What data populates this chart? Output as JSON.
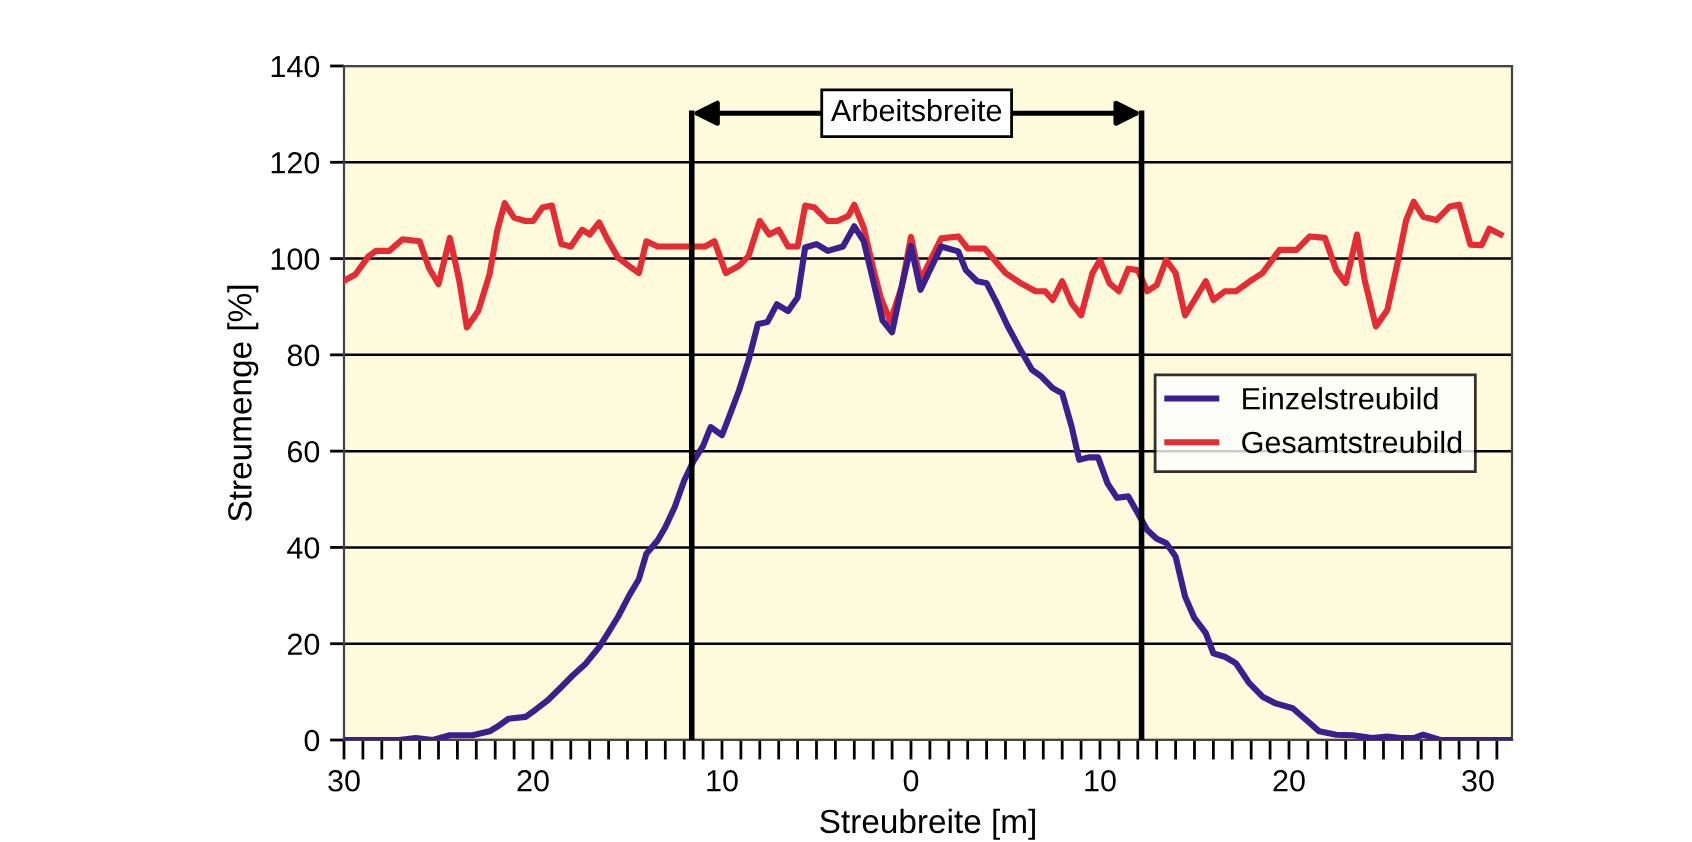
{
  "chart_data": {
    "type": "line",
    "xlabel": "Streubreite [m]",
    "ylabel": "Streumenge [%]",
    "xlim": [
      -30,
      31.8
    ],
    "ylim": [
      0,
      140
    ],
    "xticks": [
      {
        "value": -30,
        "label": "30"
      },
      {
        "value": -29,
        "label": null
      },
      {
        "value": -28,
        "label": null
      },
      {
        "value": -27,
        "label": null
      },
      {
        "value": -26,
        "label": null
      },
      {
        "value": -25,
        "label": null
      },
      {
        "value": -24,
        "label": null
      },
      {
        "value": -23,
        "label": null
      },
      {
        "value": -22,
        "label": null
      },
      {
        "value": -21,
        "label": null
      },
      {
        "value": -20,
        "label": "20"
      },
      {
        "value": -19,
        "label": null
      },
      {
        "value": -18,
        "label": null
      },
      {
        "value": -17,
        "label": null
      },
      {
        "value": -16,
        "label": null
      },
      {
        "value": -15,
        "label": null
      },
      {
        "value": -14,
        "label": null
      },
      {
        "value": -13,
        "label": null
      },
      {
        "value": -12,
        "label": null
      },
      {
        "value": -11,
        "label": null
      },
      {
        "value": -10,
        "label": "10"
      },
      {
        "value": -9,
        "label": null
      },
      {
        "value": -8,
        "label": null
      },
      {
        "value": -7,
        "label": null
      },
      {
        "value": -6,
        "label": null
      },
      {
        "value": -5,
        "label": null
      },
      {
        "value": -4,
        "label": null
      },
      {
        "value": -3,
        "label": null
      },
      {
        "value": -2,
        "label": null
      },
      {
        "value": -1,
        "label": null
      },
      0,
      {
        "value": 1,
        "label": null
      },
      {
        "value": 2,
        "label": null
      },
      {
        "value": 3,
        "label": null
      },
      {
        "value": 4,
        "label": null
      },
      {
        "value": 5,
        "label": null
      },
      {
        "value": 6,
        "label": null
      },
      {
        "value": 7,
        "label": null
      },
      {
        "value": 8,
        "label": null
      },
      {
        "value": 9,
        "label": null
      },
      10,
      {
        "value": 11,
        "label": null
      },
      {
        "value": 12,
        "label": null
      },
      {
        "value": 13,
        "label": null
      },
      {
        "value": 14,
        "label": null
      },
      {
        "value": 15,
        "label": null
      },
      {
        "value": 16,
        "label": null
      },
      {
        "value": 17,
        "label": null
      },
      {
        "value": 18,
        "label": null
      },
      {
        "value": 19,
        "label": null
      },
      20,
      {
        "value": 21,
        "label": null
      },
      {
        "value": 22,
        "label": null
      },
      {
        "value": 23,
        "label": null
      },
      {
        "value": 24,
        "label": null
      },
      {
        "value": 25,
        "label": null
      },
      {
        "value": 26,
        "label": null
      },
      {
        "value": 27,
        "label": null
      },
      {
        "value": 28,
        "label": null
      },
      {
        "value": 29,
        "label": null
      },
      30,
      {
        "value": 31,
        "label": null
      }
    ],
    "yticks": [
      0,
      20,
      40,
      60,
      80,
      100,
      120,
      140
    ],
    "grid": "y",
    "legend": "right",
    "line_style": "solid",
    "marker": "none",
    "series": [
      {
        "name": "Einzelstreubild",
        "color": "#3b1f8f",
        "x": [
          -30,
          -27.1,
          -26.2,
          -25.3,
          -24.4,
          -23.2,
          -22.3,
          -21.8,
          -21.3,
          -20.4,
          -19.9,
          -19.2,
          -18.5,
          -17.9,
          -17.2,
          -16.5,
          -16,
          -15.5,
          -14.9,
          -14.4,
          -14,
          -13.4,
          -13,
          -12.5,
          -12,
          -11.5,
          -11,
          -10.6,
          -10,
          -9.5,
          -9.1,
          -8.6,
          -8.1,
          -7.6,
          -7.1,
          -6.5,
          -6,
          -5.6,
          -5,
          -4.4,
          -3.6,
          -3,
          -2.5,
          -2,
          -1.5,
          -1,
          -0.5,
          0,
          0.5,
          1.6,
          2.5,
          2.9,
          3.5,
          4,
          4.5,
          5.1,
          5.7,
          6.4,
          6.9,
          7.5,
          8,
          8.5,
          8.9,
          9.4,
          9.9,
          10.4,
          10.9,
          11.5,
          12,
          12.5,
          13,
          13.5,
          14,
          14.5,
          15,
          15.6,
          16,
          16.6,
          17.2,
          17.9,
          18.6,
          19.3,
          20.2,
          20.9,
          21.6,
          22.5,
          23.4,
          24.4,
          25.2,
          25.9,
          26.6,
          27.1,
          28,
          31.8
        ],
        "values": [
          0,
          0,
          0.4,
          0,
          1,
          1,
          1.8,
          3,
          4.4,
          4.8,
          6.2,
          8.3,
          11,
          13.4,
          15.9,
          19.3,
          22.4,
          25.6,
          30.1,
          33.4,
          38.7,
          41.5,
          44.2,
          48.4,
          53.9,
          58,
          61.1,
          65,
          63.3,
          68.4,
          72.6,
          78.8,
          86.4,
          86.8,
          90.5,
          89.1,
          91.9,
          102.3,
          103,
          101.6,
          102.5,
          106.7,
          103.6,
          95.4,
          87.1,
          84.7,
          94,
          102.6,
          93.5,
          102.5,
          101.5,
          97.6,
          95.3,
          94.9,
          91.1,
          86.1,
          81.7,
          76.9,
          75.5,
          73.1,
          72,
          65.1,
          58.2,
          58.7,
          58.7,
          53.3,
          50.3,
          50.6,
          47.1,
          43.6,
          41.8,
          40.9,
          38.1,
          29.8,
          25.3,
          22.2,
          18,
          17.3,
          15.9,
          11.8,
          9,
          7.6,
          6.6,
          4.2,
          1.8,
          1.1,
          1,
          0.4,
          0.7,
          0.4,
          0.4,
          1.1,
          0,
          0
        ]
      },
      {
        "name": "Gesamtstreubild",
        "color": "#e52b33",
        "x": [
          -30,
          -29.4,
          -28.7,
          -28.3,
          -27.6,
          -26.9,
          -26,
          -25.5,
          -25,
          -24.4,
          -23.9,
          -23.5,
          -22.9,
          -22.3,
          -21.9,
          -21.5,
          -21,
          -20.4,
          -20,
          -19.5,
          -19,
          -18.5,
          -18,
          -17.4,
          -17,
          -16.5,
          -16.1,
          -15.5,
          -14.9,
          -14.4,
          -14,
          -13.4,
          -12.7,
          -11.6,
          -10.9,
          -10.4,
          -9.8,
          -9.1,
          -8.6,
          -8,
          -7.5,
          -7,
          -6.5,
          -6,
          -5.6,
          -5.1,
          -4.4,
          -3.9,
          -3.3,
          -3,
          -2.5,
          -2,
          -1.6,
          -1.1,
          -0.5,
          0,
          0.5,
          1.6,
          2.5,
          3,
          3.9,
          5,
          5.8,
          6.6,
          7.1,
          7.5,
          8,
          8.5,
          9,
          9.6,
          10,
          10.5,
          11,
          11.5,
          12,
          12.5,
          13,
          13.5,
          14,
          14.5,
          15,
          15.6,
          16,
          16.6,
          17.2,
          17.9,
          18.6,
          19.5,
          20.4,
          21.1,
          21.9,
          22.5,
          23,
          23.6,
          24,
          24.6,
          25.2,
          25.7,
          26.2,
          26.6,
          27.1,
          27.8,
          28.5,
          29,
          29.6,
          30.2,
          30.6,
          31.2
        ],
        "values": [
          95.4,
          96.7,
          100.5,
          101.6,
          101.6,
          104,
          103.6,
          98,
          94.7,
          104.3,
          95.4,
          85.7,
          89.1,
          96.7,
          105.7,
          111.5,
          108.5,
          107.8,
          107.8,
          110.6,
          111,
          103,
          102.5,
          106,
          105,
          107.5,
          104.3,
          100.2,
          98.4,
          97,
          103.6,
          102.5,
          102.5,
          102.5,
          102.5,
          103.6,
          97,
          98.5,
          100.5,
          107.8,
          105,
          106,
          102.5,
          102.5,
          111,
          110.6,
          107.8,
          107.8,
          108.9,
          111.2,
          106.4,
          98,
          91.9,
          87,
          94,
          104.5,
          95.5,
          104.2,
          104.6,
          102.1,
          102.1,
          97,
          94.9,
          93.2,
          93.2,
          91.4,
          95.3,
          90.7,
          88.2,
          97,
          99.7,
          94.9,
          93.2,
          97.9,
          97.6,
          93.2,
          94.5,
          99.7,
          97,
          88.2,
          91.4,
          95.3,
          91.4,
          93.2,
          93.2,
          95.2,
          97,
          101.8,
          101.8,
          104.6,
          104.3,
          97.6,
          94.9,
          105,
          95.6,
          85.9,
          89.3,
          98.3,
          108,
          111.8,
          108.7,
          108,
          110.8,
          111.2,
          102.9,
          102.8,
          106.2,
          105
        ]
      }
    ],
    "ref_lines": [
      {
        "axis": "x",
        "value": -11.6,
        "color": "#000000"
      },
      {
        "axis": "x",
        "value": 12.2,
        "color": "#000000"
      }
    ],
    "annotations": [
      "Arbeitsbreite"
    ]
  }
}
